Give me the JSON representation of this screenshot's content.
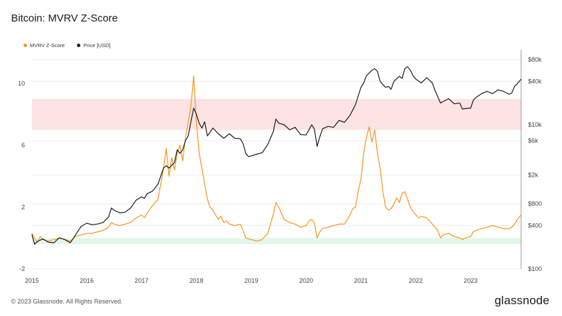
{
  "title": "Bitcoin: MVRV Z-Score",
  "legend": {
    "series1": "MVRV Z-Score",
    "series2": "Price [USD]"
  },
  "footer": "© 2023 Glassnode. All Rights Reserved.",
  "brand": "glassnode",
  "colors": {
    "zscore": "#f7931a",
    "price": "#1a1a1a",
    "red_band": "#fde3e3",
    "green_band": "#e3f6ea"
  },
  "chart_data": {
    "type": "line",
    "xlabel": "",
    "ylabel": "",
    "x_range": [
      2015.0,
      2023.92
    ],
    "x_ticks": [
      2015,
      2016,
      2017,
      2018,
      2019,
      2020,
      2021,
      2022,
      2023
    ],
    "x_tick_labels": [
      "2015",
      "2016",
      "2017",
      "2018",
      "2019",
      "2020",
      "2021",
      "2022",
      "2023"
    ],
    "y_left": {
      "range": [
        -2,
        12
      ],
      "ticks": [
        -2,
        2,
        6,
        10
      ],
      "tick_labels": [
        "-2",
        "2",
        "6",
        "10"
      ]
    },
    "y_right": {
      "scale": "log",
      "range": [
        100,
        100000
      ],
      "ticks": [
        100,
        400,
        800,
        2000,
        6000,
        10000,
        40000,
        80000
      ],
      "tick_labels": [
        "$100",
        "$400",
        "$800",
        "$2k",
        "$6k",
        "$10k",
        "$40k",
        "$80k"
      ]
    },
    "bands": [
      {
        "name": "overvalued-zone",
        "y_from": 7,
        "y_to": 9,
        "color": "#fde3e3"
      },
      {
        "name": "undervalued-zone",
        "y_from": -0.4,
        "y_to": 0,
        "color": "#e3f6ea"
      }
    ],
    "series": [
      {
        "name": "MVRV Z-Score",
        "axis": "left",
        "color": "#f7931a",
        "points": [
          [
            2015.0,
            0.3
          ],
          [
            2015.05,
            0.0
          ],
          [
            2015.1,
            -0.3
          ],
          [
            2015.15,
            0.1
          ],
          [
            2015.2,
            -0.1
          ],
          [
            2015.3,
            -0.2
          ],
          [
            2015.4,
            -0.1
          ],
          [
            2015.5,
            0.0
          ],
          [
            2015.6,
            -0.1
          ],
          [
            2015.7,
            -0.2
          ],
          [
            2015.8,
            0.1
          ],
          [
            2015.9,
            0.2
          ],
          [
            2016.0,
            0.3
          ],
          [
            2016.1,
            0.3
          ],
          [
            2016.2,
            0.4
          ],
          [
            2016.3,
            0.5
          ],
          [
            2016.4,
            0.7
          ],
          [
            2016.45,
            1.0
          ],
          [
            2016.5,
            0.9
          ],
          [
            2016.6,
            0.8
          ],
          [
            2016.7,
            0.9
          ],
          [
            2016.8,
            1.0
          ],
          [
            2016.9,
            1.3
          ],
          [
            2017.0,
            1.5
          ],
          [
            2017.05,
            1.3
          ],
          [
            2017.1,
            1.6
          ],
          [
            2017.2,
            2.1
          ],
          [
            2017.3,
            2.5
          ],
          [
            2017.35,
            3.5
          ],
          [
            2017.4,
            4.5
          ],
          [
            2017.45,
            5.8
          ],
          [
            2017.5,
            4.0
          ],
          [
            2017.55,
            5.2
          ],
          [
            2017.6,
            4.4
          ],
          [
            2017.65,
            5.5
          ],
          [
            2017.7,
            6.0
          ],
          [
            2017.75,
            5.0
          ],
          [
            2017.8,
            6.5
          ],
          [
            2017.85,
            7.5
          ],
          [
            2017.9,
            8.5
          ],
          [
            2017.95,
            10.5
          ],
          [
            2018.0,
            7.5
          ],
          [
            2018.05,
            5.5
          ],
          [
            2018.1,
            4.5
          ],
          [
            2018.15,
            3.5
          ],
          [
            2018.2,
            2.5
          ],
          [
            2018.25,
            2.0
          ],
          [
            2018.3,
            1.8
          ],
          [
            2018.35,
            1.5
          ],
          [
            2018.4,
            1.2
          ],
          [
            2018.45,
            1.4
          ],
          [
            2018.5,
            1.0
          ],
          [
            2018.55,
            1.1
          ],
          [
            2018.6,
            0.9
          ],
          [
            2018.7,
            0.8
          ],
          [
            2018.8,
            0.9
          ],
          [
            2018.85,
            0.5
          ],
          [
            2018.9,
            0.0
          ],
          [
            2019.0,
            -0.1
          ],
          [
            2019.1,
            -0.2
          ],
          [
            2019.2,
            -0.1
          ],
          [
            2019.3,
            0.3
          ],
          [
            2019.35,
            0.9
          ],
          [
            2019.4,
            1.5
          ],
          [
            2019.45,
            2.3
          ],
          [
            2019.5,
            2.0
          ],
          [
            2019.55,
            1.6
          ],
          [
            2019.6,
            1.2
          ],
          [
            2019.7,
            1.0
          ],
          [
            2019.8,
            0.9
          ],
          [
            2019.9,
            0.7
          ],
          [
            2020.0,
            0.8
          ],
          [
            2020.05,
            1.1
          ],
          [
            2020.1,
            1.2
          ],
          [
            2020.15,
            1.0
          ],
          [
            2020.2,
            0.0
          ],
          [
            2020.25,
            0.4
          ],
          [
            2020.3,
            0.6
          ],
          [
            2020.4,
            0.7
          ],
          [
            2020.5,
            0.8
          ],
          [
            2020.6,
            0.9
          ],
          [
            2020.7,
            0.9
          ],
          [
            2020.75,
            1.2
          ],
          [
            2020.8,
            1.5
          ],
          [
            2020.85,
            1.9
          ],
          [
            2020.9,
            2.0
          ],
          [
            2020.95,
            3.0
          ],
          [
            2021.0,
            3.8
          ],
          [
            2021.05,
            5.5
          ],
          [
            2021.1,
            6.5
          ],
          [
            2021.15,
            7.2
          ],
          [
            2021.2,
            6.2
          ],
          [
            2021.25,
            7.0
          ],
          [
            2021.3,
            5.5
          ],
          [
            2021.35,
            4.5
          ],
          [
            2021.4,
            3.0
          ],
          [
            2021.45,
            2.0
          ],
          [
            2021.5,
            1.8
          ],
          [
            2021.55,
            1.9
          ],
          [
            2021.6,
            2.2
          ],
          [
            2021.65,
            2.6
          ],
          [
            2021.7,
            2.3
          ],
          [
            2021.75,
            2.9
          ],
          [
            2021.8,
            3.0
          ],
          [
            2021.85,
            2.5
          ],
          [
            2021.9,
            2.0
          ],
          [
            2021.95,
            1.7
          ],
          [
            2022.0,
            1.5
          ],
          [
            2022.05,
            1.3
          ],
          [
            2022.1,
            1.4
          ],
          [
            2022.2,
            1.3
          ],
          [
            2022.3,
            0.9
          ],
          [
            2022.4,
            0.5
          ],
          [
            2022.45,
            0.0
          ],
          [
            2022.5,
            0.2
          ],
          [
            2022.6,
            0.3
          ],
          [
            2022.7,
            0.1
          ],
          [
            2022.8,
            0.0
          ],
          [
            2022.85,
            -0.1
          ],
          [
            2022.9,
            0.0
          ],
          [
            2023.0,
            0.1
          ],
          [
            2023.05,
            0.4
          ],
          [
            2023.1,
            0.5
          ],
          [
            2023.2,
            0.6
          ],
          [
            2023.3,
            0.7
          ],
          [
            2023.4,
            0.8
          ],
          [
            2023.5,
            0.7
          ],
          [
            2023.6,
            0.6
          ],
          [
            2023.7,
            0.6
          ],
          [
            2023.75,
            0.7
          ],
          [
            2023.8,
            0.9
          ],
          [
            2023.85,
            1.2
          ],
          [
            2023.92,
            1.5
          ]
        ]
      },
      {
        "name": "Price [USD]",
        "axis": "right",
        "color": "#1a1a1a",
        "points": [
          [
            2015.0,
            300
          ],
          [
            2015.05,
            220
          ],
          [
            2015.1,
            240
          ],
          [
            2015.2,
            260
          ],
          [
            2015.3,
            235
          ],
          [
            2015.4,
            230
          ],
          [
            2015.5,
            270
          ],
          [
            2015.6,
            255
          ],
          [
            2015.7,
            230
          ],
          [
            2015.8,
            300
          ],
          [
            2015.9,
            390
          ],
          [
            2016.0,
            430
          ],
          [
            2016.1,
            410
          ],
          [
            2016.2,
            420
          ],
          [
            2016.3,
            440
          ],
          [
            2016.4,
            530
          ],
          [
            2016.45,
            700
          ],
          [
            2016.5,
            650
          ],
          [
            2016.6,
            600
          ],
          [
            2016.7,
            610
          ],
          [
            2016.8,
            700
          ],
          [
            2016.9,
            900
          ],
          [
            2017.0,
            1000
          ],
          [
            2017.05,
            950
          ],
          [
            2017.1,
            1100
          ],
          [
            2017.2,
            1200
          ],
          [
            2017.3,
            1500
          ],
          [
            2017.4,
            2500
          ],
          [
            2017.45,
            2700
          ],
          [
            2017.5,
            2500
          ],
          [
            2017.6,
            3000
          ],
          [
            2017.65,
            4500
          ],
          [
            2017.7,
            4000
          ],
          [
            2017.75,
            4500
          ],
          [
            2017.8,
            6000
          ],
          [
            2017.85,
            7000
          ],
          [
            2017.9,
            11000
          ],
          [
            2017.95,
            17000
          ],
          [
            2018.0,
            14000
          ],
          [
            2018.05,
            10500
          ],
          [
            2018.1,
            9000
          ],
          [
            2018.15,
            11000
          ],
          [
            2018.2,
            7000
          ],
          [
            2018.3,
            9000
          ],
          [
            2018.4,
            7500
          ],
          [
            2018.5,
            6500
          ],
          [
            2018.6,
            7500
          ],
          [
            2018.7,
            6500
          ],
          [
            2018.8,
            6400
          ],
          [
            2018.85,
            5500
          ],
          [
            2018.9,
            4000
          ],
          [
            2018.95,
            3600
          ],
          [
            2019.0,
            3700
          ],
          [
            2019.1,
            3900
          ],
          [
            2019.2,
            4100
          ],
          [
            2019.3,
            5300
          ],
          [
            2019.4,
            8000
          ],
          [
            2019.45,
            12000
          ],
          [
            2019.5,
            10500
          ],
          [
            2019.6,
            10000
          ],
          [
            2019.7,
            8500
          ],
          [
            2019.8,
            9200
          ],
          [
            2019.9,
            7300
          ],
          [
            2020.0,
            7200
          ],
          [
            2020.1,
            10000
          ],
          [
            2020.15,
            8800
          ],
          [
            2020.2,
            5000
          ],
          [
            2020.25,
            6800
          ],
          [
            2020.3,
            8800
          ],
          [
            2020.4,
            9500
          ],
          [
            2020.5,
            9200
          ],
          [
            2020.6,
            11500
          ],
          [
            2020.7,
            10800
          ],
          [
            2020.8,
            13500
          ],
          [
            2020.85,
            16000
          ],
          [
            2020.9,
            19000
          ],
          [
            2020.95,
            25000
          ],
          [
            2021.0,
            33000
          ],
          [
            2021.05,
            38000
          ],
          [
            2021.1,
            48000
          ],
          [
            2021.2,
            57000
          ],
          [
            2021.25,
            60000
          ],
          [
            2021.3,
            55000
          ],
          [
            2021.35,
            40000
          ],
          [
            2021.4,
            36000
          ],
          [
            2021.45,
            33000
          ],
          [
            2021.5,
            34000
          ],
          [
            2021.55,
            31000
          ],
          [
            2021.6,
            40000
          ],
          [
            2021.7,
            47000
          ],
          [
            2021.75,
            44000
          ],
          [
            2021.8,
            60000
          ],
          [
            2021.85,
            64000
          ],
          [
            2021.9,
            57000
          ],
          [
            2021.95,
            48000
          ],
          [
            2022.0,
            43000
          ],
          [
            2022.1,
            38000
          ],
          [
            2022.2,
            45000
          ],
          [
            2022.3,
            38000
          ],
          [
            2022.35,
            30000
          ],
          [
            2022.45,
            20000
          ],
          [
            2022.5,
            21000
          ],
          [
            2022.6,
            23000
          ],
          [
            2022.7,
            19500
          ],
          [
            2022.8,
            20000
          ],
          [
            2022.85,
            16500
          ],
          [
            2022.9,
            16800
          ],
          [
            2023.0,
            17000
          ],
          [
            2023.05,
            22000
          ],
          [
            2023.1,
            24000
          ],
          [
            2023.2,
            27000
          ],
          [
            2023.3,
            29000
          ],
          [
            2023.4,
            27000
          ],
          [
            2023.5,
            30500
          ],
          [
            2023.6,
            29000
          ],
          [
            2023.7,
            26500
          ],
          [
            2023.75,
            27500
          ],
          [
            2023.8,
            34000
          ],
          [
            2023.85,
            37000
          ],
          [
            2023.92,
            43000
          ]
        ]
      }
    ]
  }
}
